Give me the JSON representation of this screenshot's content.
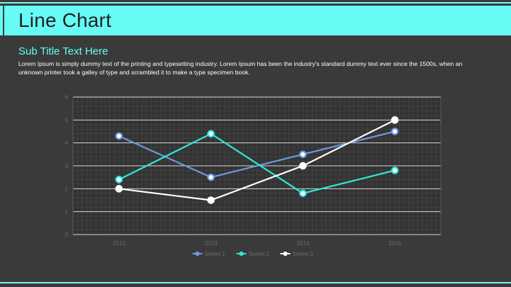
{
  "header": {
    "title": "Line Chart"
  },
  "content": {
    "subtitle": "Sub Title Text Here",
    "body": "Lorem Ipsum is simply dummy text of the printing and typesetting industry. Lorem Ipsum has been the industry's standard dummy text ever since the 1500s, when an unknown printer took a galley of type and scrambled it to make a type specimen book."
  },
  "colors": {
    "accent": "#66fbf4",
    "background": "#3a3a3a",
    "series1": "#6a9be0",
    "series2": "#2de8dc",
    "series3": "#ffffff"
  },
  "chart_data": {
    "type": "line",
    "categories": [
      "2012",
      "2013",
      "2014",
      "2015"
    ],
    "ylim": [
      0,
      6
    ],
    "yticks": [
      "0",
      "1",
      "2",
      "3",
      "4",
      "5",
      "6"
    ],
    "grid": true,
    "legend_position": "bottom",
    "series": [
      {
        "name": "Series 1",
        "values": [
          4.3,
          2.5,
          3.5,
          4.5
        ],
        "color": "#6a9be0"
      },
      {
        "name": "Series 2",
        "values": [
          2.4,
          4.4,
          1.8,
          2.8
        ],
        "color": "#2de8dc"
      },
      {
        "name": "Series 3",
        "values": [
          2.0,
          1.5,
          3.0,
          5.0
        ],
        "color": "#ffffff"
      }
    ]
  }
}
